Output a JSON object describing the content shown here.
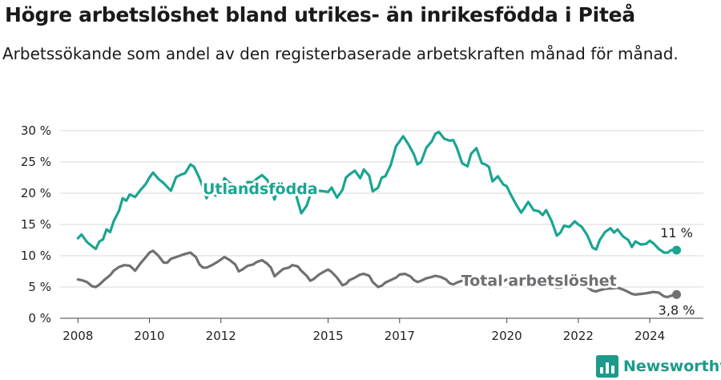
{
  "header": {
    "title": "Högre arbetslöshet bland utrikes- än inrikesfödda i Piteå",
    "subtitle": "Arbetssökande som andel av den registerbaserade arbetskraften månad för månad."
  },
  "brand": {
    "name": "Newsworthy",
    "icon": "bar-chart-logo-icon",
    "color": "#1d9a8a"
  },
  "chart_data": {
    "type": "line",
    "title": "Högre arbetslöshet bland utrikes- än inrikesfödda i Piteå",
    "subtitle": "Arbetssökande som andel av den registerbaserade arbetskraften månad för månad.",
    "x_axis": {
      "min": 2007.5,
      "max": 2025.5,
      "ticks": [
        2008,
        2010,
        2012,
        2015,
        2017,
        2020,
        2022,
        2024
      ],
      "tick_labels": [
        "2008",
        "2010",
        "2012",
        "2015",
        "2017",
        "2020",
        "2022",
        "2024"
      ]
    },
    "y_axis": {
      "min": 0,
      "max": 30,
      "ticks": [
        0,
        5,
        10,
        15,
        20,
        25,
        30
      ],
      "tick_labels": [
        "0 %",
        "5 %",
        "10 %",
        "15 %",
        "20 %",
        "25 %",
        "30 %"
      ],
      "unit": "%"
    },
    "grid": true,
    "series": [
      {
        "name": "Utlandsfödda",
        "color": "#1aa592",
        "end_label": "11 %",
        "points": [
          [
            2008.0,
            12.8
          ],
          [
            2008.1,
            13.4
          ],
          [
            2008.25,
            12.2
          ],
          [
            2008.4,
            11.5
          ],
          [
            2008.5,
            11.1
          ],
          [
            2008.6,
            12.3
          ],
          [
            2008.7,
            12.6
          ],
          [
            2008.8,
            14.2
          ],
          [
            2008.9,
            13.8
          ],
          [
            2009.0,
            15.5
          ],
          [
            2009.15,
            17.2
          ],
          [
            2009.25,
            19.2
          ],
          [
            2009.35,
            18.8
          ],
          [
            2009.45,
            19.8
          ],
          [
            2009.6,
            19.4
          ],
          [
            2009.75,
            20.5
          ],
          [
            2009.9,
            21.5
          ],
          [
            2010.0,
            22.5
          ],
          [
            2010.1,
            23.3
          ],
          [
            2010.25,
            22.3
          ],
          [
            2010.4,
            21.6
          ],
          [
            2010.5,
            21.0
          ],
          [
            2010.6,
            20.4
          ],
          [
            2010.75,
            22.6
          ],
          [
            2010.9,
            23.0
          ],
          [
            2011.0,
            23.2
          ],
          [
            2011.15,
            24.6
          ],
          [
            2011.25,
            24.2
          ],
          [
            2011.4,
            22.4
          ],
          [
            2011.5,
            20.9
          ],
          [
            2011.6,
            19.2
          ],
          [
            2011.75,
            21.0
          ],
          [
            2011.85,
            19.6
          ],
          [
            2012.0,
            21.0
          ],
          [
            2012.1,
            22.4
          ],
          [
            2012.25,
            21.6
          ],
          [
            2012.4,
            21.3
          ],
          [
            2012.5,
            20.4
          ],
          [
            2012.6,
            20.5
          ],
          [
            2012.75,
            21.8
          ],
          [
            2012.9,
            21.7
          ],
          [
            2013.0,
            22.3
          ],
          [
            2013.15,
            22.9
          ],
          [
            2013.3,
            22.1
          ],
          [
            2013.4,
            20.6
          ],
          [
            2013.5,
            19.0
          ],
          [
            2013.6,
            20.8
          ],
          [
            2013.75,
            20.7
          ],
          [
            2013.9,
            20.6
          ],
          [
            2014.0,
            20.4
          ],
          [
            2014.1,
            19.8
          ],
          [
            2014.25,
            16.8
          ],
          [
            2014.4,
            18.0
          ],
          [
            2014.5,
            19.7
          ],
          [
            2014.6,
            20.5
          ],
          [
            2014.75,
            20.4
          ],
          [
            2014.9,
            20.3
          ],
          [
            2015.0,
            20.2
          ],
          [
            2015.1,
            20.9
          ],
          [
            2015.25,
            19.3
          ],
          [
            2015.4,
            20.5
          ],
          [
            2015.5,
            22.5
          ],
          [
            2015.6,
            23.0
          ],
          [
            2015.75,
            23.6
          ],
          [
            2015.9,
            22.4
          ],
          [
            2016.0,
            23.8
          ],
          [
            2016.15,
            22.8
          ],
          [
            2016.25,
            20.3
          ],
          [
            2016.4,
            20.9
          ],
          [
            2016.5,
            22.5
          ],
          [
            2016.6,
            22.7
          ],
          [
            2016.75,
            24.5
          ],
          [
            2016.9,
            27.5
          ],
          [
            2017.0,
            28.3
          ],
          [
            2017.1,
            29.1
          ],
          [
            2017.25,
            27.8
          ],
          [
            2017.4,
            26.2
          ],
          [
            2017.5,
            24.6
          ],
          [
            2017.6,
            25.0
          ],
          [
            2017.75,
            27.3
          ],
          [
            2017.9,
            28.3
          ],
          [
            2018.0,
            29.5
          ],
          [
            2018.1,
            29.8
          ],
          [
            2018.25,
            28.7
          ],
          [
            2018.4,
            28.4
          ],
          [
            2018.5,
            28.5
          ],
          [
            2018.6,
            27.3
          ],
          [
            2018.75,
            24.8
          ],
          [
            2018.9,
            24.3
          ],
          [
            2019.0,
            26.3
          ],
          [
            2019.15,
            27.2
          ],
          [
            2019.3,
            24.8
          ],
          [
            2019.4,
            24.6
          ],
          [
            2019.5,
            24.2
          ],
          [
            2019.6,
            21.9
          ],
          [
            2019.75,
            22.7
          ],
          [
            2019.9,
            21.4
          ],
          [
            2020.0,
            21.1
          ],
          [
            2020.1,
            19.9
          ],
          [
            2020.25,
            18.3
          ],
          [
            2020.4,
            16.9
          ],
          [
            2020.5,
            17.7
          ],
          [
            2020.6,
            18.6
          ],
          [
            2020.75,
            17.3
          ],
          [
            2020.9,
            17.1
          ],
          [
            2021.0,
            16.5
          ],
          [
            2021.1,
            17.3
          ],
          [
            2021.25,
            15.6
          ],
          [
            2021.4,
            13.2
          ],
          [
            2021.5,
            13.7
          ],
          [
            2021.6,
            14.8
          ],
          [
            2021.75,
            14.6
          ],
          [
            2021.9,
            15.5
          ],
          [
            2022.0,
            15.0
          ],
          [
            2022.1,
            14.6
          ],
          [
            2022.25,
            13.3
          ],
          [
            2022.4,
            11.3
          ],
          [
            2022.5,
            11.0
          ],
          [
            2022.6,
            12.5
          ],
          [
            2022.75,
            13.8
          ],
          [
            2022.9,
            14.4
          ],
          [
            2023.0,
            13.7
          ],
          [
            2023.1,
            14.2
          ],
          [
            2023.25,
            13.1
          ],
          [
            2023.4,
            12.5
          ],
          [
            2023.5,
            11.4
          ],
          [
            2023.6,
            12.3
          ],
          [
            2023.75,
            11.8
          ],
          [
            2023.9,
            11.9
          ],
          [
            2024.0,
            12.4
          ],
          [
            2024.1,
            12.0
          ],
          [
            2024.25,
            11.1
          ],
          [
            2024.4,
            10.5
          ],
          [
            2024.5,
            10.5
          ],
          [
            2024.6,
            10.9
          ],
          [
            2024.75,
            10.9
          ]
        ]
      },
      {
        "name": "Total arbetslöshet",
        "color": "#706f74",
        "end_label": "3,8 %",
        "points": [
          [
            2008.0,
            6.2
          ],
          [
            2008.1,
            6.1
          ],
          [
            2008.25,
            5.8
          ],
          [
            2008.4,
            5.1
          ],
          [
            2008.5,
            5.0
          ],
          [
            2008.6,
            5.4
          ],
          [
            2008.75,
            6.2
          ],
          [
            2008.9,
            6.9
          ],
          [
            2009.0,
            7.6
          ],
          [
            2009.15,
            8.2
          ],
          [
            2009.3,
            8.5
          ],
          [
            2009.45,
            8.4
          ],
          [
            2009.6,
            7.6
          ],
          [
            2009.75,
            8.8
          ],
          [
            2009.9,
            9.8
          ],
          [
            2010.0,
            10.5
          ],
          [
            2010.1,
            10.8
          ],
          [
            2010.25,
            10.0
          ],
          [
            2010.4,
            8.9
          ],
          [
            2010.5,
            8.9
          ],
          [
            2010.6,
            9.5
          ],
          [
            2010.75,
            9.8
          ],
          [
            2010.9,
            10.1
          ],
          [
            2011.0,
            10.3
          ],
          [
            2011.15,
            10.5
          ],
          [
            2011.3,
            9.8
          ],
          [
            2011.4,
            8.6
          ],
          [
            2011.5,
            8.1
          ],
          [
            2011.6,
            8.1
          ],
          [
            2011.75,
            8.5
          ],
          [
            2011.9,
            9.0
          ],
          [
            2012.0,
            9.4
          ],
          [
            2012.1,
            9.8
          ],
          [
            2012.25,
            9.3
          ],
          [
            2012.4,
            8.6
          ],
          [
            2012.5,
            7.5
          ],
          [
            2012.6,
            7.8
          ],
          [
            2012.75,
            8.4
          ],
          [
            2012.9,
            8.6
          ],
          [
            2013.0,
            9.0
          ],
          [
            2013.15,
            9.3
          ],
          [
            2013.3,
            8.7
          ],
          [
            2013.4,
            8.1
          ],
          [
            2013.5,
            6.7
          ],
          [
            2013.6,
            7.2
          ],
          [
            2013.75,
            7.9
          ],
          [
            2013.9,
            8.1
          ],
          [
            2014.0,
            8.5
          ],
          [
            2014.15,
            8.3
          ],
          [
            2014.25,
            7.6
          ],
          [
            2014.4,
            6.8
          ],
          [
            2014.5,
            6.0
          ],
          [
            2014.6,
            6.3
          ],
          [
            2014.75,
            7.0
          ],
          [
            2014.9,
            7.5
          ],
          [
            2015.0,
            7.8
          ],
          [
            2015.1,
            7.4
          ],
          [
            2015.25,
            6.5
          ],
          [
            2015.4,
            5.3
          ],
          [
            2015.5,
            5.5
          ],
          [
            2015.6,
            6.1
          ],
          [
            2015.75,
            6.5
          ],
          [
            2015.9,
            7.0
          ],
          [
            2016.0,
            7.1
          ],
          [
            2016.15,
            6.8
          ],
          [
            2016.25,
            5.8
          ],
          [
            2016.4,
            5.0
          ],
          [
            2016.5,
            5.2
          ],
          [
            2016.6,
            5.7
          ],
          [
            2016.75,
            6.1
          ],
          [
            2016.9,
            6.5
          ],
          [
            2017.0,
            7.0
          ],
          [
            2017.15,
            7.1
          ],
          [
            2017.3,
            6.7
          ],
          [
            2017.4,
            6.1
          ],
          [
            2017.5,
            5.8
          ],
          [
            2017.6,
            6.0
          ],
          [
            2017.75,
            6.4
          ],
          [
            2017.9,
            6.6
          ],
          [
            2018.0,
            6.8
          ],
          [
            2018.15,
            6.6
          ],
          [
            2018.3,
            6.2
          ],
          [
            2018.4,
            5.6
          ],
          [
            2018.5,
            5.4
          ],
          [
            2018.6,
            5.7
          ],
          [
            2018.75,
            6.0
          ],
          [
            2018.9,
            6.2
          ],
          [
            2019.0,
            6.3
          ],
          [
            2019.15,
            6.1
          ],
          [
            2019.3,
            5.7
          ],
          [
            2019.4,
            5.2
          ],
          [
            2019.5,
            5.0
          ],
          [
            2019.6,
            5.3
          ],
          [
            2019.75,
            5.6
          ],
          [
            2019.9,
            5.9
          ],
          [
            2020.0,
            6.2
          ],
          [
            2020.15,
            6.4
          ],
          [
            2020.3,
            6.0
          ],
          [
            2020.4,
            5.5
          ],
          [
            2020.5,
            5.2
          ],
          [
            2020.6,
            5.6
          ],
          [
            2020.75,
            5.8
          ],
          [
            2020.9,
            5.6
          ],
          [
            2021.0,
            5.5
          ],
          [
            2021.15,
            5.5
          ],
          [
            2021.3,
            5.1
          ],
          [
            2021.4,
            4.9
          ],
          [
            2021.5,
            4.9
          ],
          [
            2021.6,
            5.2
          ],
          [
            2021.75,
            5.2
          ],
          [
            2021.9,
            5.4
          ],
          [
            2022.0,
            5.6
          ],
          [
            2022.1,
            5.4
          ],
          [
            2022.25,
            5.0
          ],
          [
            2022.4,
            4.4
          ],
          [
            2022.5,
            4.3
          ],
          [
            2022.6,
            4.5
          ],
          [
            2022.75,
            4.7
          ],
          [
            2022.9,
            4.8
          ],
          [
            2023.0,
            4.8
          ],
          [
            2023.1,
            4.9
          ],
          [
            2023.25,
            4.6
          ],
          [
            2023.4,
            4.2
          ],
          [
            2023.5,
            3.9
          ],
          [
            2023.6,
            3.8
          ],
          [
            2023.75,
            3.9
          ],
          [
            2023.9,
            4.0
          ],
          [
            2024.0,
            4.1
          ],
          [
            2024.1,
            4.2
          ],
          [
            2024.25,
            4.1
          ],
          [
            2024.4,
            3.5
          ],
          [
            2024.5,
            3.4
          ],
          [
            2024.6,
            3.6
          ],
          [
            2024.75,
            3.8
          ]
        ]
      }
    ],
    "labels": [
      {
        "series": 0,
        "text": "Utlandsfödda",
        "x": 2013.1,
        "y": 20.8
      },
      {
        "series": 1,
        "text": "Total arbetslöshet",
        "x": 2020.9,
        "y": 6.1
      }
    ]
  }
}
